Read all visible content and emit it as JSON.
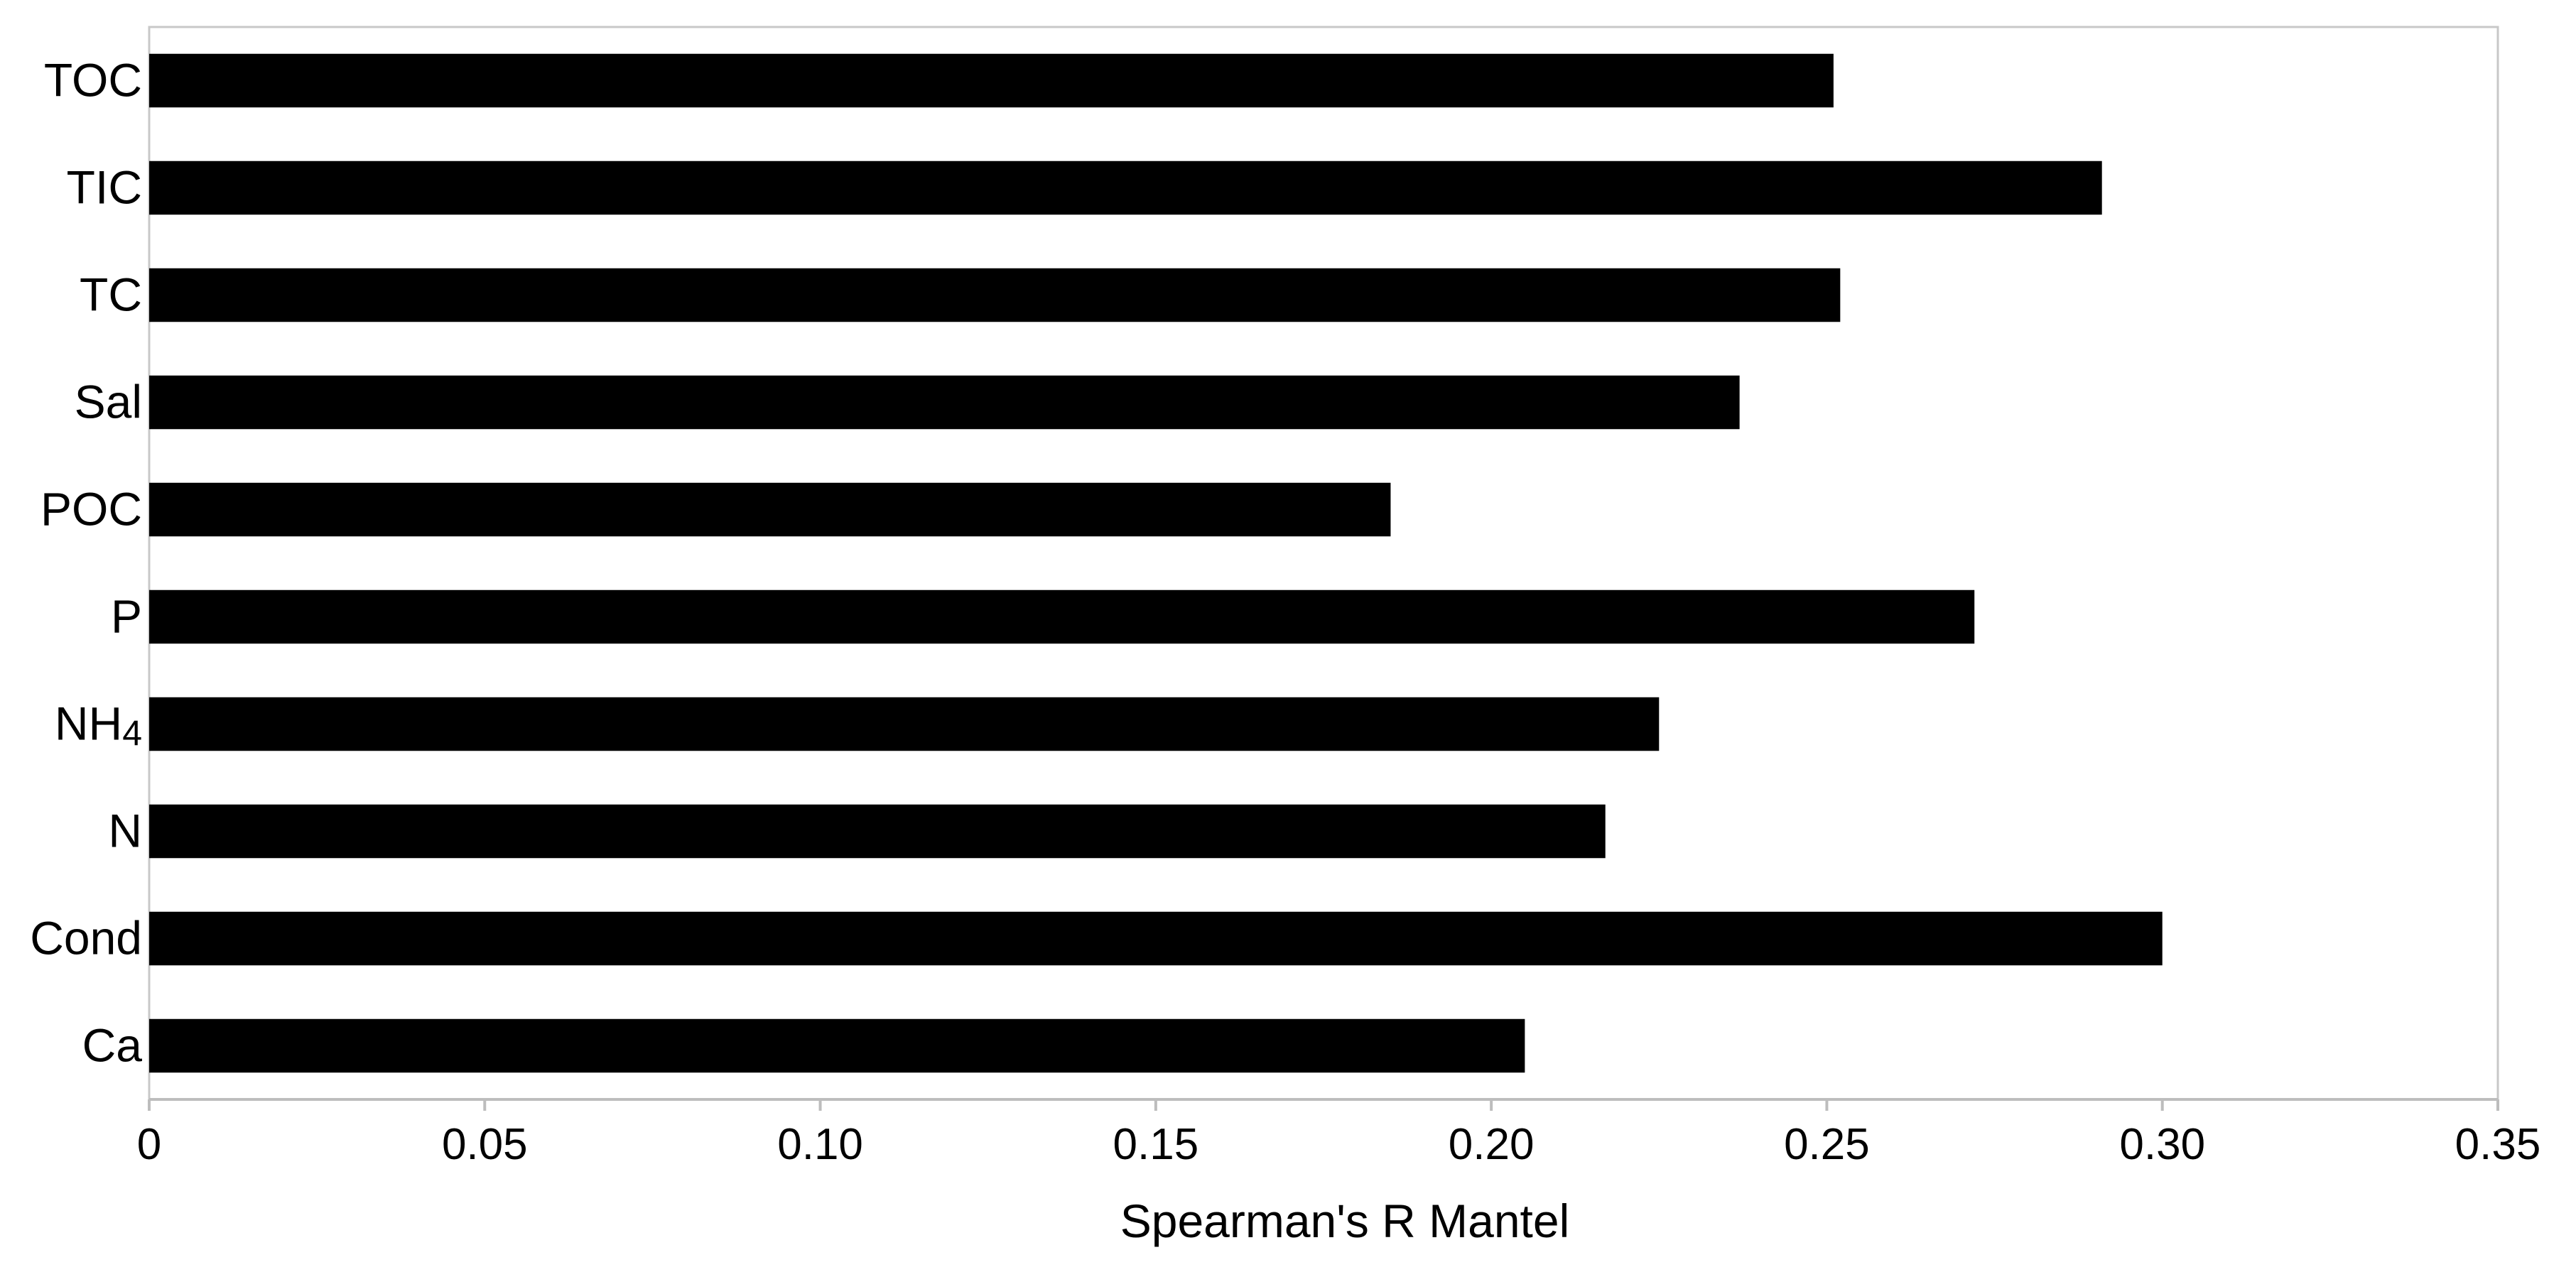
{
  "chart_data": {
    "type": "bar",
    "orientation": "horizontal",
    "categories": [
      "TOC",
      "TIC",
      "TC",
      "Sal",
      "POC",
      "P",
      "NH4",
      "N",
      "Cond",
      "Ca"
    ],
    "category_labels": [
      {
        "main": "TOC",
        "sub": ""
      },
      {
        "main": "TIC",
        "sub": ""
      },
      {
        "main": "TC",
        "sub": ""
      },
      {
        "main": "Sal",
        "sub": ""
      },
      {
        "main": "POC",
        "sub": ""
      },
      {
        "main": "P",
        "sub": ""
      },
      {
        "main": "NH",
        "sub": "4"
      },
      {
        "main": "N",
        "sub": ""
      },
      {
        "main": "Cond",
        "sub": ""
      },
      {
        "main": "Ca",
        "sub": ""
      }
    ],
    "values": [
      0.251,
      0.291,
      0.252,
      0.237,
      0.185,
      0.272,
      0.225,
      0.217,
      0.3,
      0.205
    ],
    "xlabel": "Spearman's R Mantel",
    "ylabel": "",
    "xlim": [
      0,
      0.35
    ],
    "xticks": [
      0,
      0.05,
      0.1,
      0.15,
      0.2,
      0.25,
      0.3,
      0.35
    ],
    "xtick_labels": [
      "0",
      "0.05",
      "0.10",
      "0.15",
      "0.20",
      "0.25",
      "0.30",
      "0.35"
    ],
    "grid": false,
    "legend": "none",
    "bar_color": "#000000",
    "frame_color": "#c8c8c8"
  }
}
